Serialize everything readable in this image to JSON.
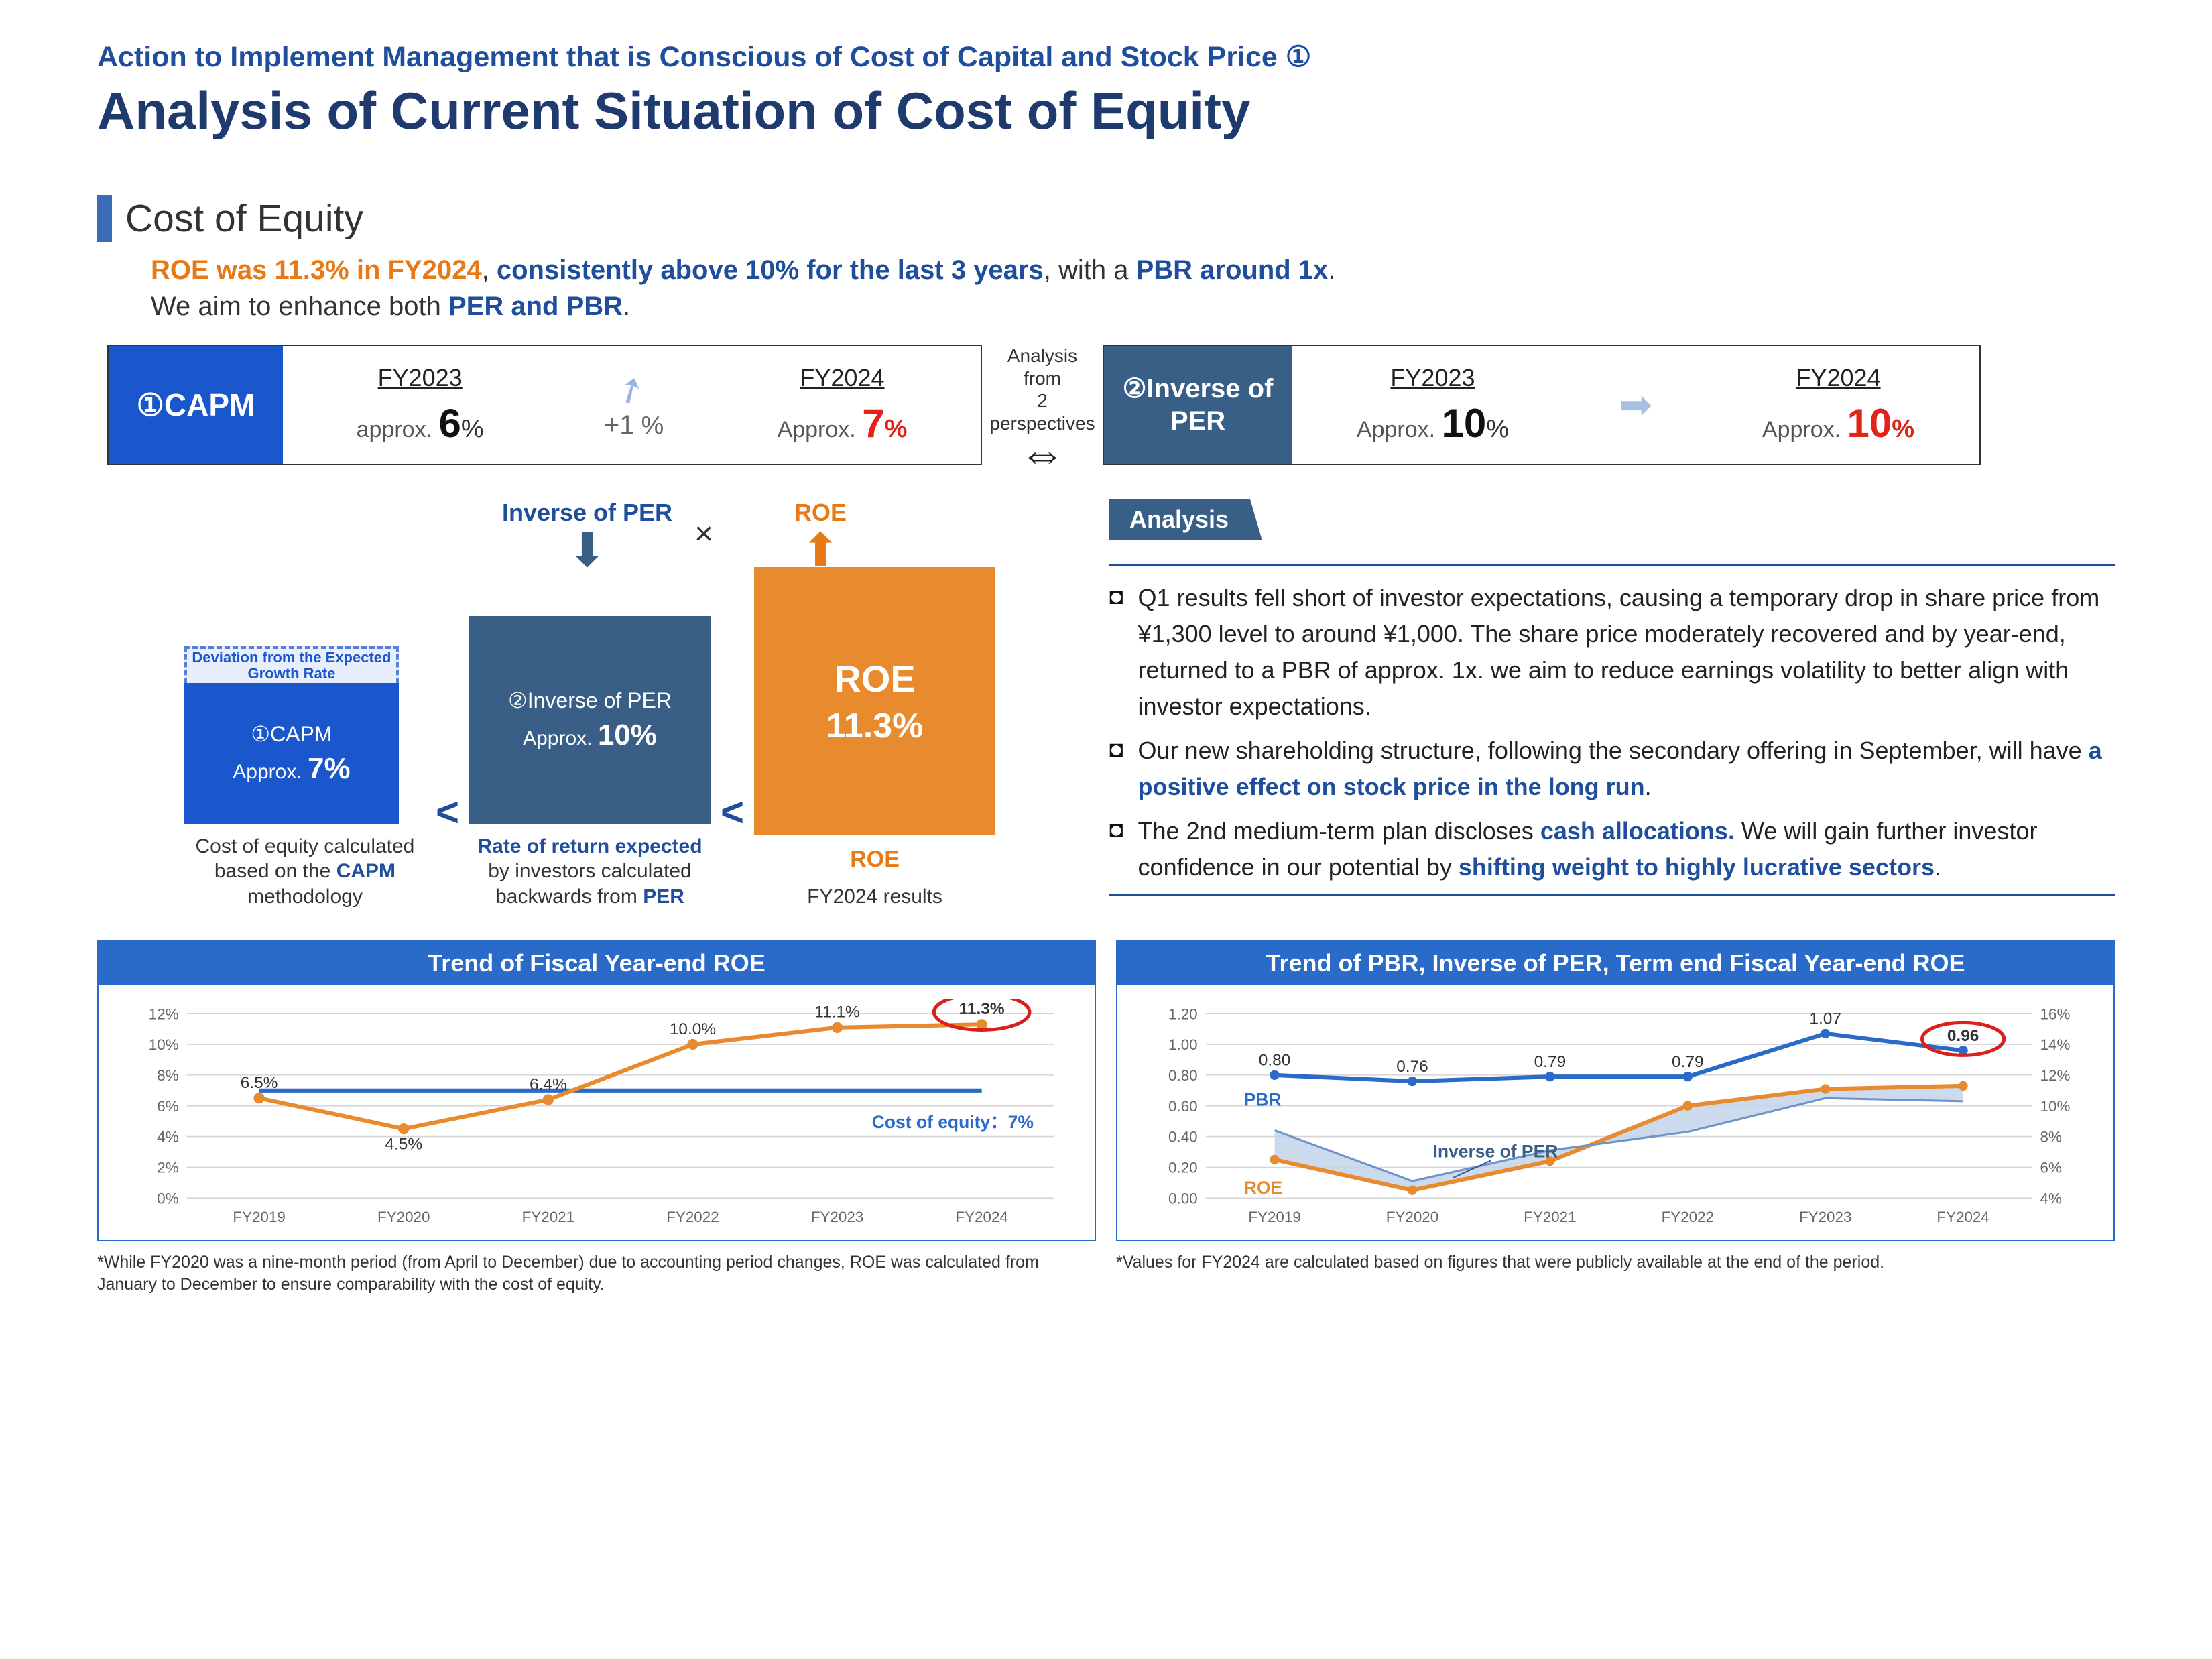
{
  "header": {
    "subtitle": "Action to Implement Management that is Conscious of Cost of Capital and Stock Price ①",
    "title": "Analysis of Current Situation of Cost of Equity"
  },
  "section": {
    "heading": "Cost of Equity",
    "lead_html_parts": {
      "p1a": "ROE was 11.3% in FY2024",
      "p1b": ", ",
      "p1c": "consistently above 10% for the last 3 years",
      "p1d": ", with a ",
      "p1e": "PBR around 1x",
      "p1f": ".",
      "p2a": "We aim to enhance both ",
      "p2b": "PER and PBR",
      "p2c": "."
    }
  },
  "capm": {
    "label": "①CAPM",
    "fy23_label": "FY2023",
    "fy23_approx": "approx. ",
    "fy23_val": "6",
    "delta": "+1",
    "fy24_label": "FY2024",
    "fy24_approx": "Approx. ",
    "fy24_val": "7"
  },
  "mid": {
    "txt1": "Analysis from",
    "txt2": "2 perspectives"
  },
  "inv": {
    "label": "②Inverse of PER",
    "fy23_label": "FY2023",
    "fy23_approx": "Approx. ",
    "fy23_val": "10",
    "fy24_label": "FY2024",
    "fy24_approx": "Approx. ",
    "fy24_val": "10"
  },
  "diagram": {
    "inv_top": "Inverse of PER",
    "roe_top": "ROE",
    "times": "×",
    "dev_label": "Deviation from the Expected Growth Rate",
    "capm_box_l1": "①CAPM",
    "capm_box_l2": "Approx. ",
    "capm_box_v": "7%",
    "inv_box_l1": "②Inverse of PER",
    "inv_box_l2": "Approx. ",
    "inv_box_v": "10%",
    "roe_box_l1": "ROE",
    "roe_box_v": "11.3%",
    "cap1a": "Cost of equity calculated based on the ",
    "cap1b": "CAPM",
    "cap1c": " methodology",
    "cap2a": "Rate of return expected",
    "cap2b": " by investors calculated backwards from ",
    "cap2c": "PER",
    "cap3a": "ROE",
    "cap3b": "FY2024 results"
  },
  "analysis": {
    "tag": "Analysis",
    "items": [
      {
        "pre": "Q1 results fell short of investor expectations, causing a temporary drop in share price from ¥1,300 level to around ¥1,000. The share price moderately recovered and by year-end, returned to a PBR of approx. 1x. we aim to reduce earnings volatility to better align with investor expectations.",
        "bold": "",
        "post": ""
      },
      {
        "pre": "Our new shareholding structure, following the secondary offering in September, will have ",
        "bold": "a positive effect on stock price in the long run",
        "post": "."
      },
      {
        "pre": "The 2nd medium-term plan discloses ",
        "bold": "cash allocations.",
        "post": " We will gain further investor confidence in our potential by ",
        "bold2": "shifting weight to highly lucrative sectors",
        "post2": "."
      }
    ]
  },
  "chart1": {
    "title": "Trend of Fiscal Year-end ROE",
    "categories": [
      "FY2019",
      "FY2020",
      "FY2021",
      "FY2022",
      "FY2023",
      "FY2024"
    ],
    "roe": [
      6.5,
      4.5,
      6.4,
      10.0,
      11.1,
      11.3
    ],
    "roe_labels": [
      "6.5%",
      "4.5%",
      "6.4%",
      "10.0%",
      "11.1%",
      "11.3%"
    ],
    "cost_of_equity": 7,
    "coe_label": "Cost of equity：7%",
    "y_ticks": [
      0,
      2,
      4,
      6,
      8,
      10,
      12
    ],
    "y_tick_labels": [
      "0%",
      "2%",
      "4%",
      "6%",
      "8%",
      "10%",
      "12%"
    ],
    "colors": {
      "roe": "#e88b2e",
      "coe": "#2a6ac9",
      "grid": "#d5d5d5"
    },
    "highlight_last": true,
    "footnote": "*While FY2020 was a nine-month period (from April to December) due to accounting period changes, ROE was calculated from January to December to ensure comparability with the cost of equity."
  },
  "chart2": {
    "title": "Trend of PBR, Inverse of PER, Term end Fiscal Year-end ROE",
    "categories": [
      "FY2019",
      "FY2020",
      "FY2021",
      "FY2022",
      "FY2023",
      "FY2024"
    ],
    "pbr": [
      0.8,
      0.76,
      0.79,
      0.79,
      1.07,
      0.96
    ],
    "pbr_labels": [
      "0.80",
      "0.76",
      "0.79",
      "0.79",
      "1.07",
      "0.96"
    ],
    "inv_per": [
      8.4,
      5.1,
      7.1,
      8.3,
      10.5,
      10.3
    ],
    "roe": [
      6.5,
      4.5,
      6.4,
      10.0,
      11.1,
      11.3
    ],
    "left_ticks": [
      0.0,
      0.2,
      0.4,
      0.6,
      0.8,
      1.0,
      1.2
    ],
    "left_labels": [
      "0.00",
      "0.20",
      "0.40",
      "0.60",
      "0.80",
      "1.00",
      "1.20"
    ],
    "right_ticks": [
      4,
      6,
      8,
      10,
      12,
      14,
      16
    ],
    "right_labels": [
      "4%",
      "6%",
      "8%",
      "10%",
      "12%",
      "14%",
      "16%"
    ],
    "series_labels": {
      "pbr": "PBR",
      "inv": "Inverse of PER",
      "roe": "ROE"
    },
    "colors": {
      "pbr": "#2a6ac9",
      "roe": "#e88b2e",
      "area": "#c3d4ea"
    },
    "highlight_last": true,
    "footnote": "*Values for FY2024 are calculated based on figures that were publicly available at the end of the period."
  }
}
